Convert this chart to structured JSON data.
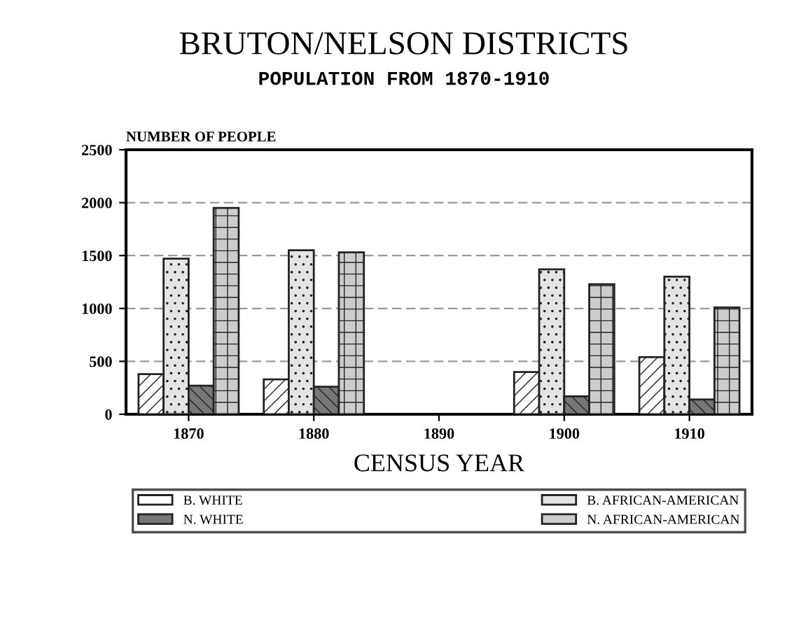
{
  "chart_data": {
    "type": "bar",
    "title": "BRUTON/NELSON DISTRICTS",
    "subtitle": "POPULATION FROM 1870-1910",
    "ylabel": "NUMBER OF PEOPLE",
    "xlabel": "CENSUS YEAR",
    "categories": [
      "1870",
      "1880",
      "1890",
      "1900",
      "1910"
    ],
    "series": [
      {
        "name": "B. WHITE",
        "color": "#ffffff",
        "values": [
          380,
          330,
          null,
          400,
          540
        ]
      },
      {
        "name": "B. AFRICAN-AMERICAN",
        "color": "#e4e4e4",
        "values": [
          1470,
          1550,
          null,
          1370,
          1300
        ]
      },
      {
        "name": "N. WHITE",
        "color": "#777777",
        "values": [
          270,
          260,
          null,
          170,
          140
        ]
      },
      {
        "name": "N. AFRICAN-AMERICAN",
        "color": "#cccccc",
        "values": [
          1950,
          1530,
          null,
          1230,
          1010
        ]
      }
    ],
    "ylim": [
      0,
      2500
    ],
    "yticks": [
      0,
      500,
      1000,
      1500,
      2000,
      2500
    ],
    "grid": "y",
    "legend": "bottom"
  }
}
